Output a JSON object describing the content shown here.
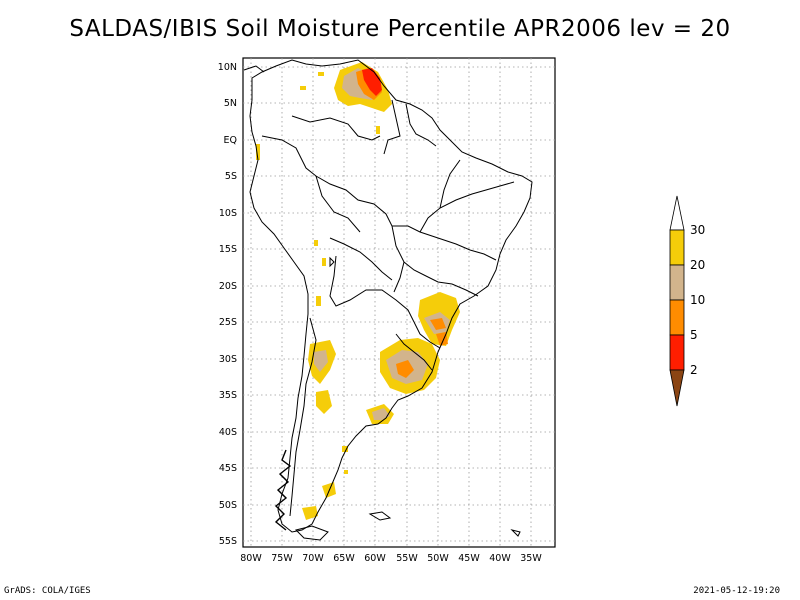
{
  "title": "SALDAS/IBIS Soil Moisture Percentile APR2006 lev = 20",
  "map": {
    "region": "South America",
    "projection": "lat-lon",
    "lon_range": [
      -80,
      -32
    ],
    "lat_range": [
      -56,
      12
    ],
    "grid": true,
    "lon_ticks": [
      "80W",
      "75W",
      "70W",
      "65W",
      "60W",
      "55W",
      "50W",
      "45W",
      "40W",
      "35W"
    ],
    "lat_ticks": [
      "10N",
      "5N",
      "EQ",
      "5S",
      "10S",
      "15S",
      "20S",
      "25S",
      "30S",
      "35S",
      "40S",
      "45S",
      "50S",
      "55S"
    ]
  },
  "colorbar": {
    "labels": [
      "30",
      "20",
      "10",
      "5",
      "2"
    ],
    "colors": {
      "above_30": "#ffffff",
      "20_30": "#f5cd0a",
      "10_20": "#d2b48c",
      "5_10": "#ff8c00",
      "2_5": "#ff1e00",
      "below_2": "#8b4513"
    }
  },
  "footer": {
    "left": "GrADS: COLA/IGES",
    "right": "2021-05-12-19:20"
  }
}
